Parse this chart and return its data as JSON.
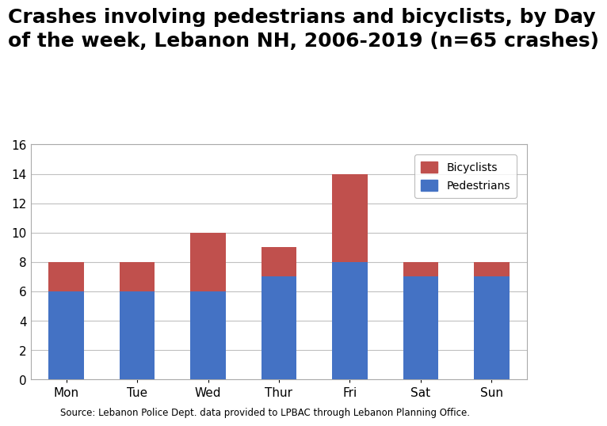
{
  "days": [
    "Mon",
    "Tue",
    "Wed",
    "Thur",
    "Fri",
    "Sat",
    "Sun"
  ],
  "pedestrians": [
    6,
    6,
    6,
    7,
    8,
    7,
    7
  ],
  "bicyclists": [
    2,
    2,
    4,
    2,
    6,
    1,
    1
  ],
  "pedestrians_color": "#4472C4",
  "bicyclists_color": "#C0504D",
  "title_line1": "Crashes involving pedestrians and bicyclists, by Day",
  "title_line2": "of the week, Lebanon NH, 2006-2019 (n=65 crashes)",
  "title_fontsize": 18,
  "ylim": [
    0,
    16
  ],
  "yticks": [
    0,
    2,
    4,
    6,
    8,
    10,
    12,
    14,
    16
  ],
  "legend_labels": [
    "Bicyclists",
    "Pedestrians"
  ],
  "source_text": "Source: Lebanon Police Dept. data provided to LPBAC through Lebanon Planning Office.",
  "background_color": "#FFFFFF",
  "plot_bg_color": "#FFFFFF",
  "grid_color": "#C0C0C0",
  "bar_width": 0.5
}
